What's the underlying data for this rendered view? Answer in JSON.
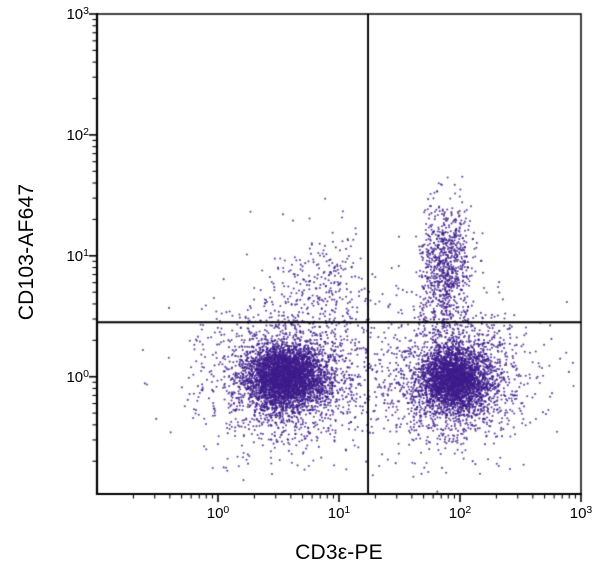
{
  "figure": {
    "background": "#ffffff",
    "frame_color": "#000000",
    "text_color": "#000000"
  },
  "chart_data": {
    "type": "scatter",
    "subtype": "flow-cytometry-quadrant-dot-plot",
    "title": "",
    "xlabel": "CD3ε-PE",
    "ylabel": "CD103-AF647",
    "x_scale": "log",
    "y_scale": "log",
    "x_range_log10": [
      -1,
      3
    ],
    "y_range_log10": [
      -0.97,
      3
    ],
    "x_tick_exponents": [
      0,
      1,
      2,
      3
    ],
    "y_tick_exponents": [
      0,
      1,
      2,
      3
    ],
    "tick_label_base": "10",
    "grid": false,
    "legend": false,
    "dot_color": "#3E1D8C",
    "dot_alpha": 0.8,
    "dot_radius_px": 1.05,
    "random_seed": 20,
    "quadrant_gates": {
      "x_threshold_value": 17.4,
      "x_threshold_log10": 1.24,
      "y_threshold_value": 2.8,
      "y_threshold_log10": 0.45
    },
    "populations": [
      {
        "name": "CD3neg-CD103neg-core",
        "n": 3200,
        "cx_log10": 0.56,
        "cy_log10": 0.0,
        "sx_log10": 0.16,
        "sy_log10": 0.13
      },
      {
        "name": "CD3neg-CD103neg-halo",
        "n": 1700,
        "cx_log10": 0.56,
        "cy_log10": -0.02,
        "sx_log10": 0.33,
        "sy_log10": 0.28
      },
      {
        "name": "CD3pos-CD103neg-core",
        "n": 2600,
        "cx_log10": 1.96,
        "cy_log10": -0.02,
        "sx_log10": 0.15,
        "sy_log10": 0.14
      },
      {
        "name": "CD3pos-CD103neg-halo",
        "n": 1400,
        "cx_log10": 1.95,
        "cy_log10": -0.02,
        "sx_log10": 0.3,
        "sy_log10": 0.28
      },
      {
        "name": "CD3pos-CD103pos-streak",
        "n": 850,
        "cx_log10": 1.88,
        "cy_log10": 0.88,
        "sx_log10": 0.11,
        "sy_log10": 0.28
      },
      {
        "name": "CD3neg-CD103pos-sparse",
        "n": 270,
        "cx_log10": 0.86,
        "cy_log10": 0.74,
        "sx_log10": 0.19,
        "sy_log10": 0.24
      },
      {
        "name": "background-scatter",
        "n": 200,
        "cx_log10": 1.25,
        "cy_log10": 0.05,
        "sx_log10": 0.85,
        "sy_log10": 0.4
      }
    ]
  }
}
